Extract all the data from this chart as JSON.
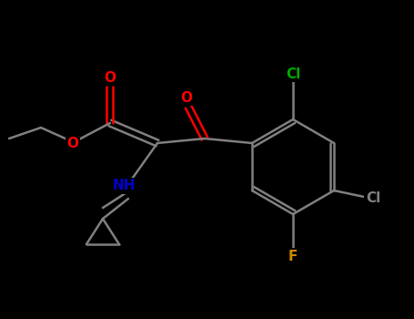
{
  "bg_color": "#000000",
  "bond_color": "#808080",
  "bond_lw": 1.8,
  "atom_colors": {
    "O": "#ff0000",
    "N": "#0000cc",
    "Cl_green": "#00aa00",
    "Cl_gray": "#808080",
    "F": "#cc8800",
    "C": "#808080",
    "H": "#808080"
  },
  "font_size": 11,
  "font_size_small": 9
}
